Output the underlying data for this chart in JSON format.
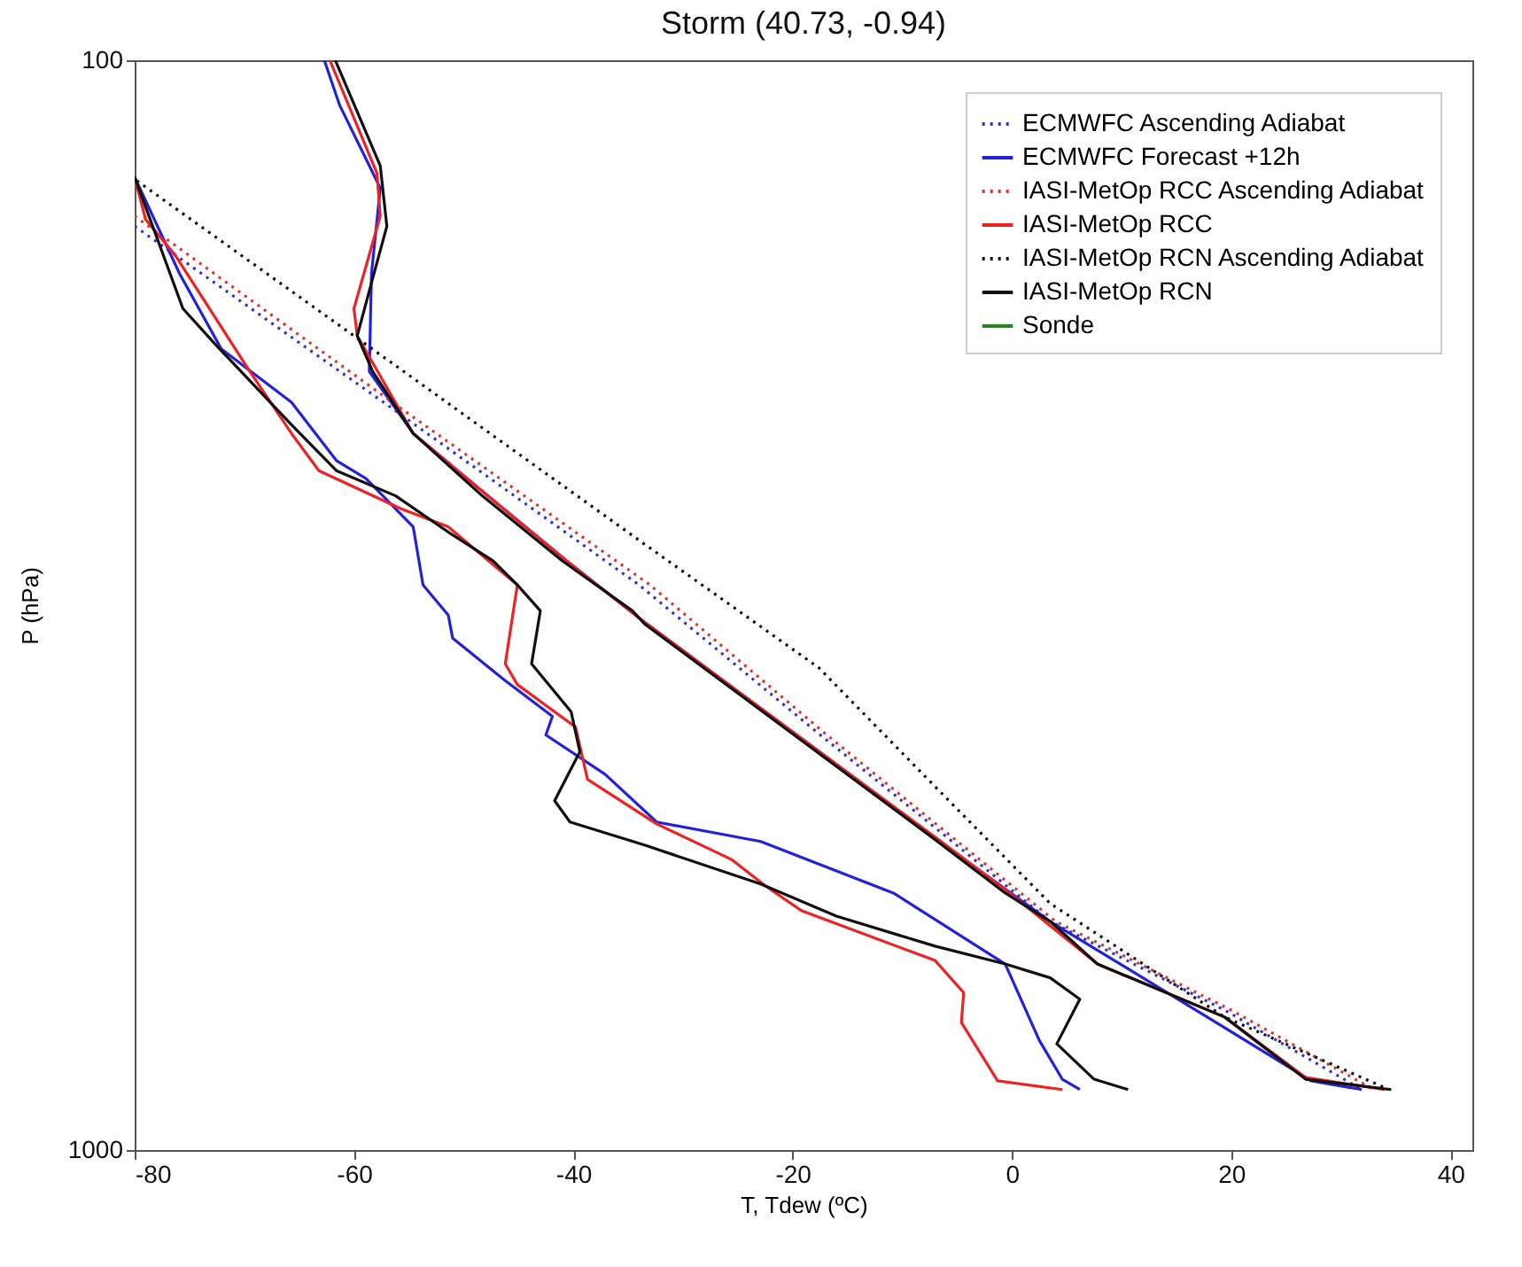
{
  "chart_data": {
    "type": "line",
    "title": "Storm   (40.73, -0.94)",
    "xlabel": "T, Tdew   (ºC)",
    "ylabel": "P (hPa)",
    "xlim": [
      -80,
      42
    ],
    "xticks": [
      -80,
      -60,
      -40,
      -20,
      0,
      20,
      40
    ],
    "ylim": [
      1000,
      100
    ],
    "yticks": [
      100,
      {
        "value": 1000,
        "label": "1000"
      }
    ],
    "log": "y",
    "grid": false,
    "legend": "top right",
    "series": [
      {
        "name": "ECMWFC Ascending Adiabat",
        "color": "#3333cc",
        "line_style": "dotted",
        "x": [
          -80.0,
          -57.3,
          -34.0,
          -17.6,
          -7.0,
          3.5,
          19.4,
          31.9
        ],
        "values": [
          142,
          206,
          303,
          415,
          506,
          617,
          744,
          880
        ]
      },
      {
        "name": "ECMWFC Forecast +12h",
        "color": "#2222dd",
        "line_style": "solid",
        "x": [
          -62.7,
          -61.3,
          -57.6,
          -58.4,
          -58.6,
          -54.6,
          -47.8,
          -40.6,
          -33.3,
          -3.8,
          3.5,
          19.4,
          27.3,
          31.9
        ],
        "values": [
          100,
          110,
          131,
          157,
          193,
          220,
          251,
          288,
          329,
          546,
          617,
          772,
          864,
          880
        ]
      },
      {
        "name": "IASI-MetOp RCC Ascending Adiabat",
        "color": "#dd3333",
        "line_style": "dotted",
        "x": [
          -80.0,
          -56.5,
          -33.0,
          -17.0,
          -6.5,
          4.0,
          20.0,
          33.0
        ],
        "values": [
          139,
          206,
          303,
          415,
          506,
          617,
          744,
          880
        ]
      },
      {
        "name": "IASI-MetOp RCC",
        "color": "#ee2222",
        "line_style": "solid",
        "x": [
          -62.2,
          -57.9,
          -57.6,
          -60.0,
          -59.7,
          -54.6,
          -47.8,
          -40.6,
          -33.3,
          -6.7,
          -0.2,
          7.8,
          19.4,
          26.8,
          34.0
        ],
        "values": [
          100,
          127,
          139,
          169,
          179,
          220,
          251,
          288,
          329,
          519,
          581,
          675,
          755,
          858,
          880
        ]
      },
      {
        "name": "IASI-MetOp RCN Ascending Adiabat",
        "color": "#111111",
        "line_style": "dotted",
        "x": [
          -79.8,
          -60.0,
          -33.5,
          -17.6,
          -7.0,
          3.5,
          19.4,
          34.4
        ],
        "values": [
          129,
          179,
          278,
          361,
          464,
          594,
          755,
          880
        ]
      },
      {
        "name": "IASI-MetOp RCN",
        "color": "#111111",
        "line_style": "solid",
        "x": [
          -61.7,
          -57.6,
          -57.0,
          -58.4,
          -59.7,
          -58.3,
          -54.6,
          -48.3,
          -41.0,
          -34.6,
          -33.5,
          -7.0,
          -0.6,
          3.5,
          7.8,
          19.4,
          26.8,
          34.6
        ],
        "values": [
          100,
          125,
          142,
          160,
          179,
          193,
          220,
          251,
          288,
          320,
          329,
          519,
          581,
          617,
          675,
          755,
          861,
          880
        ]
      },
      {
        "name": "Sonde",
        "color": "#228822",
        "line_style": "solid"
      },
      {
        "color": "#2222dd",
        "line_style": "solid",
        "x": [
          -80.0,
          -75.9,
          -72.1,
          -65.7,
          -61.6,
          -58.9,
          -54.6,
          -53.7,
          -51.4,
          -51.0,
          -46.2,
          -41.9,
          -42.5,
          -37.1,
          -32.4,
          -22.9,
          -10.8,
          -0.6,
          2.5,
          4.6,
          6.2
        ],
        "values": [
          128,
          157,
          184,
          206,
          233,
          242,
          268,
          303,
          323,
          339,
          371,
          400,
          416,
          452,
          500,
          521,
          581,
          675,
          793,
          861,
          880
        ]
      },
      {
        "color": "#ee2222",
        "line_style": "solid",
        "x": [
          -80.0,
          -79.0,
          -76.3,
          -69.5,
          -65.7,
          -63.2,
          -55.7,
          -51.4,
          -45.1,
          -46.2,
          -45.1,
          -39.8,
          -38.7,
          -32.4,
          -25.6,
          -22.4,
          -19.2,
          -7.0,
          -4.4,
          -4.6,
          -1.3,
          4.6
        ],
        "values": [
          128,
          140,
          151,
          193,
          220,
          238,
          258,
          268,
          303,
          358,
          374,
          409,
          457,
          502,
          541,
          573,
          603,
          670,
          717,
          764,
          864,
          880
        ]
      },
      {
        "color": "#111111",
        "line_style": "solid",
        "x": [
          -80.0,
          -75.6,
          -72.7,
          -65.7,
          -61.6,
          -56.2,
          -51.4,
          -47.3,
          -45.1,
          -43.0,
          -43.8,
          -40.2,
          -39.4,
          -41.7,
          -40.3,
          -33.5,
          -22.9,
          -16.0,
          -7.0,
          -0.6,
          3.5,
          6.2,
          4.1,
          7.5,
          10.6
        ],
        "values": [
          128,
          169,
          182,
          216,
          238,
          251,
          271,
          288,
          303,
          320,
          358,
          396,
          431,
          478,
          500,
          525,
          570,
          610,
          650,
          675,
          695,
          727,
          799,
          861,
          880
        ]
      }
    ]
  }
}
